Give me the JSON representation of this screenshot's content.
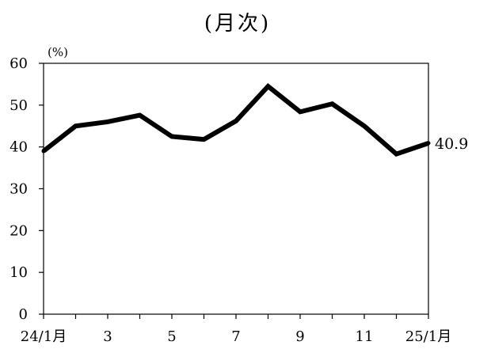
{
  "chart_data": {
    "type": "line",
    "title": "(月次)",
    "ylabel": "(%)",
    "ylim": [
      0,
      60
    ],
    "yticks": [
      "0",
      "10",
      "20",
      "30",
      "40",
      "50",
      "60"
    ],
    "x_tick_labels": [
      {
        "index": 0,
        "label": "24/1月"
      },
      {
        "index": 2,
        "label": "3"
      },
      {
        "index": 4,
        "label": "5"
      },
      {
        "index": 6,
        "label": "7"
      },
      {
        "index": 8,
        "label": "9"
      },
      {
        "index": 10,
        "label": "11"
      },
      {
        "index": 12,
        "label": "25/1月"
      }
    ],
    "x": [
      "24/1",
      "24/2",
      "24/3",
      "24/4",
      "24/5",
      "24/6",
      "24/7",
      "24/8",
      "24/9",
      "24/10",
      "24/11",
      "24/12",
      "25/1"
    ],
    "series": [
      {
        "values": [
          39.0,
          45.0,
          46.0,
          47.6,
          42.5,
          41.8,
          46.2,
          54.5,
          48.4,
          50.3,
          45.0,
          38.3,
          40.9
        ]
      }
    ],
    "last_value_label": "40.9",
    "grid": false,
    "legend": "none",
    "line_color": "#000000"
  }
}
